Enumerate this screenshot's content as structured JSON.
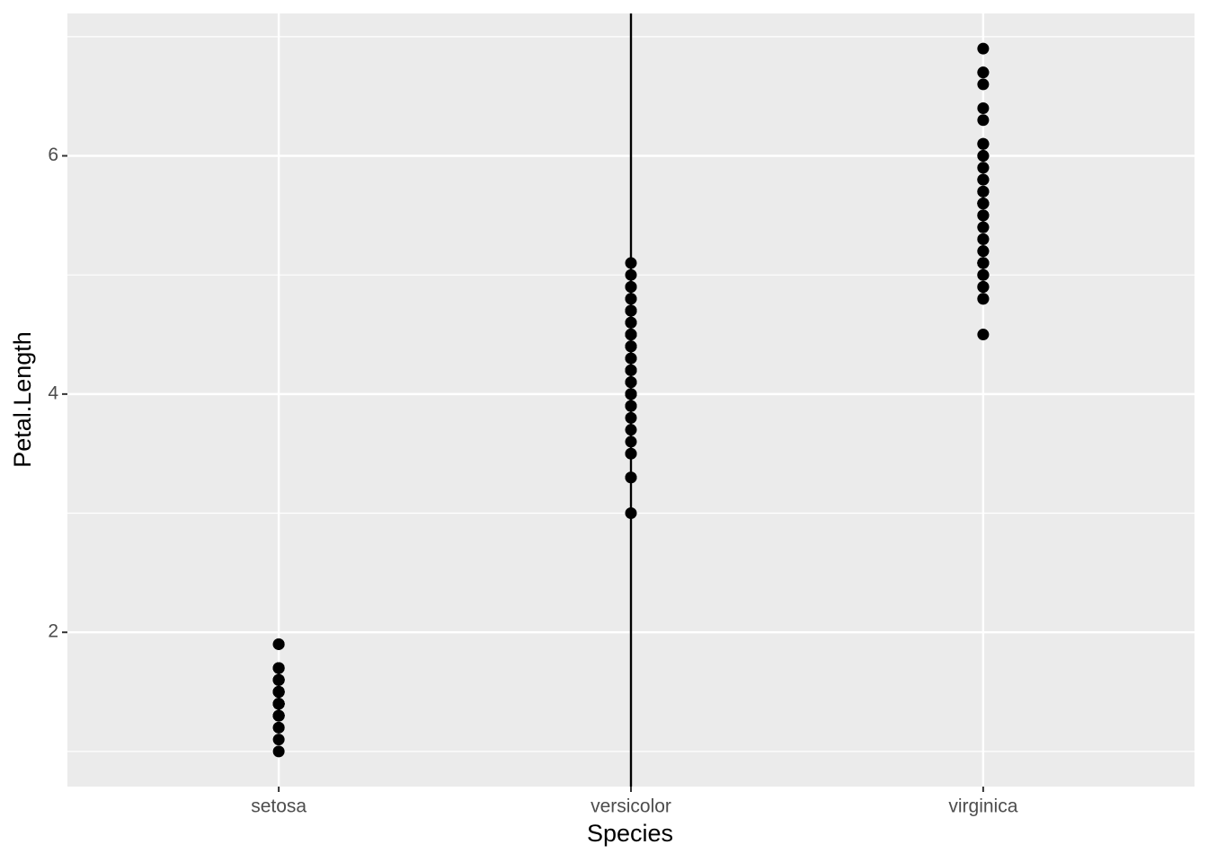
{
  "chart_data": {
    "type": "strip",
    "x_label": "Species",
    "y_label": "Petal.Length",
    "categories": [
      "setosa",
      "versicolor",
      "virginica"
    ],
    "values": [
      [
        1.4,
        1.4,
        1.3,
        1.5,
        1.4,
        1.7,
        1.4,
        1.5,
        1.4,
        1.5,
        1.5,
        1.6,
        1.4,
        1.1,
        1.2,
        1.5,
        1.3,
        1.4,
        1.7,
        1.5,
        1.7,
        1.5,
        1.0,
        1.7,
        1.9,
        1.6,
        1.6,
        1.5,
        1.4,
        1.6,
        1.6,
        1.5,
        1.5,
        1.4,
        1.5,
        1.2,
        1.3,
        1.4,
        1.3,
        1.5,
        1.3,
        1.3,
        1.3,
        1.6,
        1.9,
        1.4,
        1.6,
        1.4,
        1.5,
        1.4
      ],
      [
        4.7,
        4.5,
        4.9,
        4.0,
        4.6,
        4.5,
        4.7,
        3.3,
        4.6,
        3.9,
        3.5,
        4.2,
        4.0,
        4.7,
        3.6,
        4.4,
        4.5,
        4.1,
        4.5,
        3.9,
        4.8,
        4.0,
        4.9,
        4.7,
        4.3,
        4.4,
        4.8,
        5.0,
        4.5,
        3.5,
        3.8,
        3.7,
        3.9,
        5.1,
        4.5,
        4.5,
        4.7,
        4.4,
        4.1,
        4.0,
        4.4,
        4.6,
        4.0,
        3.3,
        4.2,
        4.2,
        4.2,
        4.3,
        3.0,
        4.1
      ],
      [
        6.0,
        5.1,
        5.9,
        5.6,
        5.8,
        6.6,
        4.5,
        6.3,
        5.8,
        6.1,
        5.1,
        5.3,
        5.5,
        5.0,
        5.1,
        5.3,
        5.5,
        6.7,
        6.9,
        5.0,
        5.7,
        4.9,
        6.7,
        4.9,
        5.7,
        6.0,
        4.8,
        4.9,
        5.6,
        5.8,
        6.1,
        6.4,
        5.6,
        5.1,
        5.6,
        6.1,
        5.6,
        5.5,
        4.8,
        5.4,
        5.6,
        5.1,
        5.1,
        5.9,
        5.7,
        5.2,
        5.0,
        5.2,
        5.4,
        5.1
      ]
    ],
    "color": "#000000",
    "vline": {
      "x": "versicolor",
      "color": "#000000"
    },
    "ylim": [
      0.705,
      7.195
    ],
    "yticks": [
      2,
      4,
      6
    ],
    "minor_yticks": [
      1,
      3,
      5,
      7
    ],
    "grid": true,
    "background": "#ebebeb"
  }
}
